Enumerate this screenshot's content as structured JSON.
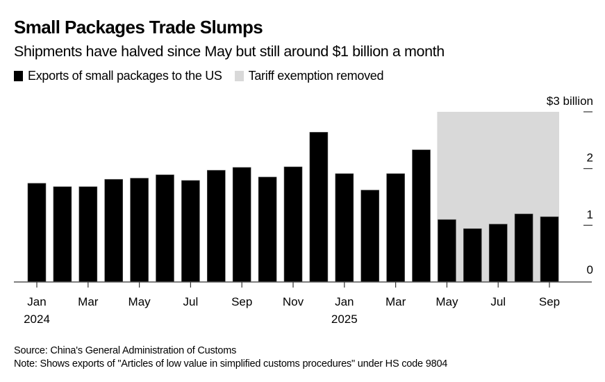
{
  "header": {
    "title": "Small Packages Trade Slumps",
    "subtitle": "Shipments have halved since May but still around $1 billion a month"
  },
  "legend": [
    {
      "label": "Exports of small packages to the US",
      "color": "#000000"
    },
    {
      "label": "Tariff exemption removed",
      "color": "#d9d9d9"
    }
  ],
  "footer": {
    "source": "Source: China's General Administration of Customs",
    "note": "Note: Shows exports of \"Articles of low value in simplified customs procedures\" under HS code 9804"
  },
  "chart_data": {
    "type": "bar",
    "title": "Small Packages Trade Slumps",
    "subtitle": "Shipments have halved since May but still around $1 billion a month",
    "xlabel": "",
    "ylabel": "$ billion",
    "ylim": [
      0,
      3
    ],
    "yticks": [
      0,
      1,
      2,
      3
    ],
    "ytick_labels": [
      "0",
      "1",
      "2",
      "$3 billion"
    ],
    "y_axis_side": "right",
    "grid": false,
    "legend_position": "top-left",
    "categories": [
      "Jan 2024",
      "Feb 2024",
      "Mar 2024",
      "Apr 2024",
      "May 2024",
      "Jun 2024",
      "Jul 2024",
      "Aug 2024",
      "Sep 2024",
      "Oct 2024",
      "Nov 2024",
      "Dec 2024",
      "Jan 2025",
      "Feb 2025",
      "Mar 2025",
      "Apr 2025",
      "May 2025",
      "Jun 2025",
      "Jul 2025",
      "Aug 2025",
      "Sep 2025"
    ],
    "series": [
      {
        "name": "Exports of small packages to the US",
        "color": "#000000",
        "values": [
          1.74,
          1.68,
          1.68,
          1.81,
          1.83,
          1.89,
          1.79,
          1.97,
          2.02,
          1.85,
          2.03,
          2.64,
          1.91,
          1.62,
          1.91,
          2.33,
          1.1,
          0.94,
          1.02,
          1.2,
          1.15
        ]
      }
    ],
    "shaded_region": {
      "label": "Tariff exemption removed",
      "from": "May 2025",
      "to": "Sep 2025",
      "color": "#d9d9d9"
    },
    "xtick_labels": [
      {
        "index": 0,
        "month": "Jan",
        "year": "2024"
      },
      {
        "index": 2,
        "month": "Mar",
        "year": ""
      },
      {
        "index": 4,
        "month": "May",
        "year": ""
      },
      {
        "index": 6,
        "month": "Jul",
        "year": ""
      },
      {
        "index": 8,
        "month": "Sep",
        "year": ""
      },
      {
        "index": 10,
        "month": "Nov",
        "year": ""
      },
      {
        "index": 12,
        "month": "Jan",
        "year": "2025"
      },
      {
        "index": 14,
        "month": "Mar",
        "year": ""
      },
      {
        "index": 16,
        "month": "May",
        "year": ""
      },
      {
        "index": 18,
        "month": "Jul",
        "year": ""
      },
      {
        "index": 20,
        "month": "Sep",
        "year": ""
      }
    ]
  }
}
